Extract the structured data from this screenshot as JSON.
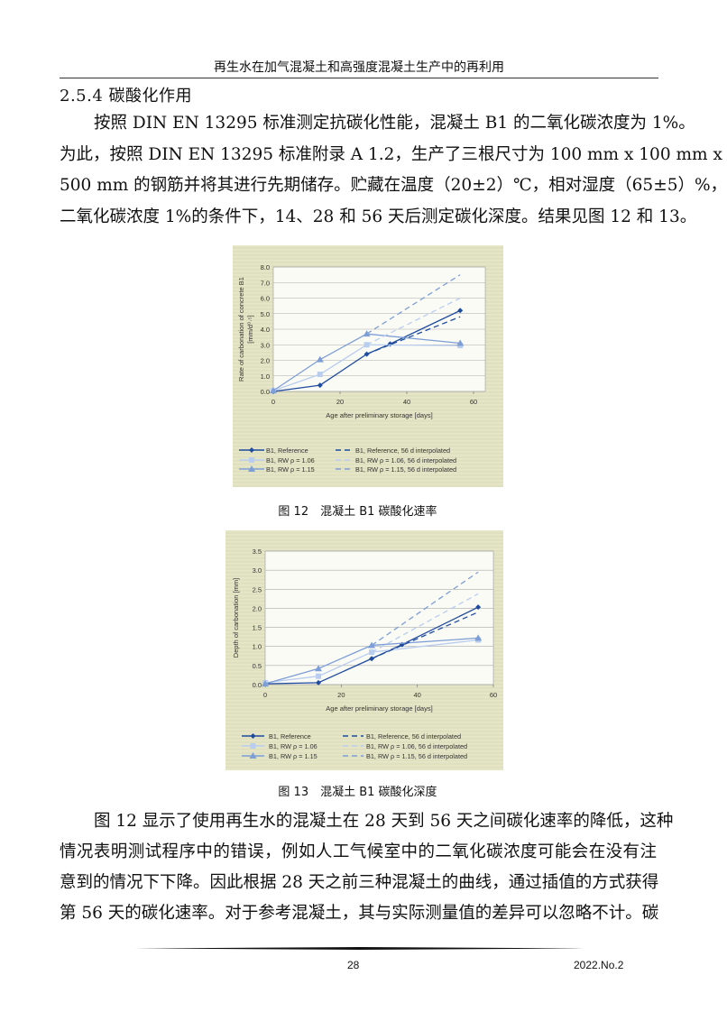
{
  "header": {
    "running_title": "再生水在加气混凝土和高强度混凝土生产中的再利用"
  },
  "section": {
    "title": "2.5.4 碳酸化作用"
  },
  "paragraph1": [
    "按照 DIN EN 13295 标准测定抗碳化性能，混凝土 B1 的二氧化碳浓度为 1%。",
    "为此，按照 DIN EN 13295 标准附录 A 1.2，生产了三根尺寸为 100 mm x 100 mm x",
    "500 mm 的钢筋并将其进行先期储存。贮藏在温度（20±2）℃，相对湿度（65±5）%，",
    "二氧化碳浓度 1%的条件下，14、28 和 56 天后测定碳化深度。结果见图 12 和 13。"
  ],
  "figure12": {
    "caption": "图 12　混凝土 B1 碳酸化速率"
  },
  "figure13": {
    "caption": "图 13　混凝土 B1 碳酸化深度"
  },
  "paragraph2": [
    "图 12 显示了使用再生水的混凝土在 28 天到 56 天之间碳化速率的降低，这种",
    "情况表明测试程序中的错误，例如人工气候室中的二氧化碳浓度可能会在没有注",
    "意到的情况下下降。因此根据 28 天之前三种混凝土的曲线，通过插值的方式获得",
    "第 56 天的碳化速率。对于参考混凝土，其与实际测量值的差异可以忽略不计。碳"
  ],
  "footer": {
    "page_number": "28",
    "issue": "2022.No.2"
  },
  "colors": {
    "reference": "#1f4c9e",
    "rw106": "#b9cdef",
    "rw115": "#7d9ed6",
    "chart_bg": "#dfe0bf",
    "plot_bg": "#fbfbf6"
  },
  "chart_data": [
    {
      "type": "line",
      "xlabel": "Age after preliminary storage [days]",
      "ylabel": [
        "Rate of carbonation of concrete B1",
        "[mm/d⁰·⁵]"
      ],
      "xlim": [
        0,
        60
      ],
      "ylim": [
        0,
        8
      ],
      "xticks": [
        0,
        20,
        40,
        60
      ],
      "yticks": [
        "0.0",
        "1.0",
        "2.0",
        "3.0",
        "4.0",
        "5.0",
        "6.0",
        "7.0",
        "8.0"
      ],
      "grid": true,
      "legend_position": "bottom",
      "series": [
        {
          "name": "B1, Reference",
          "style": "solid",
          "marker": "diamond",
          "color_key": "reference",
          "x": [
            0,
            14,
            28,
            35,
            56
          ],
          "y": [
            0.0,
            0.4,
            2.4,
            3.05,
            5.2
          ]
        },
        {
          "name": "B1, RW  ρ = 1.06",
          "style": "solid",
          "marker": "square",
          "color_key": "rw106",
          "x": [
            0,
            14,
            28,
            56
          ],
          "y": [
            0.05,
            1.1,
            3.0,
            2.95
          ]
        },
        {
          "name": "B1, RW  ρ = 1.15",
          "style": "solid",
          "marker": "triangle",
          "color_key": "rw115",
          "x": [
            0,
            14,
            28,
            56
          ],
          "y": [
            0.05,
            2.05,
            3.7,
            3.1
          ]
        },
        {
          "name": "B1, Reference, 56 d interpolated",
          "style": "dashed",
          "color_key": "reference",
          "x": [
            28,
            56
          ],
          "y": [
            2.4,
            4.8
          ]
        },
        {
          "name": "B1, RW  ρ = 1.06, 56 d interpolated",
          "style": "dashed",
          "color_key": "rw106",
          "x": [
            28,
            56
          ],
          "y": [
            3.0,
            6.0
          ]
        },
        {
          "name": "B1, RW  ρ = 1.15, 56 d interpolated",
          "style": "dashed",
          "color_key": "rw115",
          "x": [
            28,
            56
          ],
          "y": [
            3.7,
            7.5
          ]
        }
      ]
    },
    {
      "type": "line",
      "xlabel": "Age after preliminary storage [days]",
      "ylabel": [
        "Depth of carbonation [mm]"
      ],
      "xlim": [
        0,
        60
      ],
      "ylim": [
        0,
        3.5
      ],
      "xticks": [
        0,
        20,
        40,
        60
      ],
      "yticks": [
        "0.0",
        "0.5",
        "1.0",
        "1.5",
        "2.0",
        "2.5",
        "3.0",
        "3.5"
      ],
      "grid": true,
      "legend_position": "bottom",
      "series": [
        {
          "name": "B1, Reference",
          "style": "solid",
          "marker": "diamond",
          "color_key": "reference",
          "x": [
            0,
            14,
            28,
            36,
            56
          ],
          "y": [
            0.02,
            0.05,
            0.68,
            1.05,
            2.03
          ]
        },
        {
          "name": "B1, RW  ρ = 1.06",
          "style": "solid",
          "marker": "square",
          "color_key": "rw106",
          "x": [
            0,
            14,
            28,
            56
          ],
          "y": [
            0.05,
            0.22,
            0.85,
            1.17
          ]
        },
        {
          "name": "B1, RW  ρ = 1.15",
          "style": "solid",
          "marker": "triangle",
          "color_key": "rw115",
          "x": [
            0,
            14,
            28,
            56
          ],
          "y": [
            0.02,
            0.42,
            1.03,
            1.22
          ]
        },
        {
          "name": "B1, Reference, 56 d interpolated",
          "style": "dashed",
          "color_key": "reference",
          "x": [
            28,
            56
          ],
          "y": [
            0.68,
            1.9
          ]
        },
        {
          "name": "B1, RW  ρ = 1.06, 56 d interpolated",
          "style": "dashed",
          "color_key": "rw106",
          "x": [
            28,
            56
          ],
          "y": [
            0.85,
            2.38
          ]
        },
        {
          "name": "B1, RW  ρ = 1.15, 56 d interpolated",
          "style": "dashed",
          "color_key": "rw115",
          "x": [
            28,
            56
          ],
          "y": [
            1.03,
            2.95
          ]
        }
      ]
    }
  ]
}
